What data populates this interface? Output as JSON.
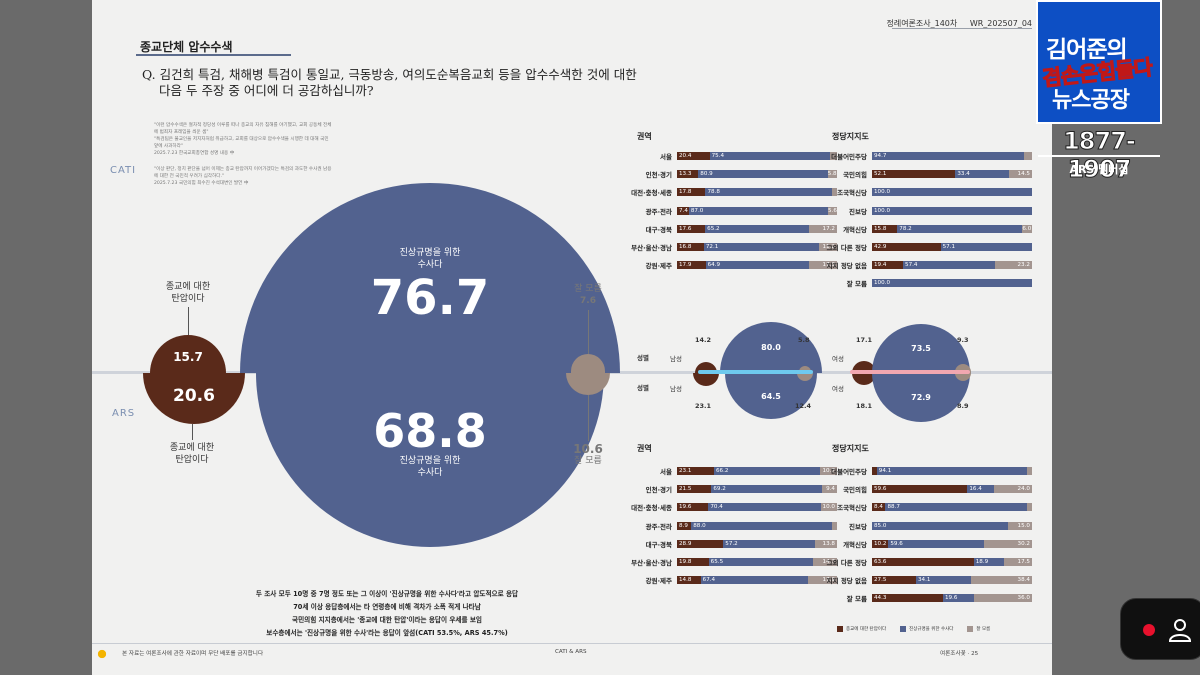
{
  "header": {
    "publication": "정례여론조사_140차",
    "issue": "WR_202507_04"
  },
  "section_title": "종교단체 압수수색",
  "question": {
    "line1": "Q. 김건희 특검, 채해병 특검이 통일교, 극동방송, 여의도순복음교회 등을 압수수색한 것에 대한",
    "line2": "다음 두 주장 중 어디에 더 공감하십니까?"
  },
  "quotes": [
    "\"이런 압수수색은 절차적 정당성 이루를 떠나 종교의 자유 침해를 야기했고, 교회 공동체 전체에 범죄자 프레임을 씌운 셈\"",
    "\"특검팀은 불교인을 저지자처럼 취급하고, 교회를 대상으로 압수수색을 시행한 데 대해 국민 앞에 사과하라\"",
    "2025.7.23 한국교회총연합 성명 내용 中",
    "\"이상 판단, 정치 판단을 넘어 이제는 종교 탄압까지 이어가겠다는 특검의 과도한 수사권 남용에 대한 전 국민적 우려가 심각하다.\"",
    "2025.7.23 국민의힘 최수진 수석대변인 발언 中"
  ],
  "labels": {
    "cati": "CATI",
    "ars": "ARS",
    "gender": "성별",
    "male": "남성",
    "female": "여성"
  },
  "main": {
    "investigation_label_line1": "진상규명을 위한",
    "investigation_label_line2": "수사다",
    "oppression_label_line1": "종교에 대한",
    "oppression_label_line2": "탄압이다",
    "dont_know_label": "잘 모름",
    "cati": {
      "investigation": "76.7",
      "oppression": "15.7",
      "dont_know": "7.6"
    },
    "ars": {
      "investigation": "68.8",
      "oppression": "20.6",
      "dont_know": "10.6"
    }
  },
  "gender": {
    "cati_male": {
      "oppression": "14.2",
      "investigation": "80.0",
      "dont_know": "5.8"
    },
    "ars_male": {
      "oppression": "23.1",
      "investigation": "64.5",
      "dont_know": "12.4"
    },
    "cati_female": {
      "oppression": "17.1",
      "investigation": "73.5",
      "dont_know": "9.3"
    },
    "ars_female": {
      "oppression": "18.1",
      "investigation": "72.9",
      "dont_know": "8.9"
    }
  },
  "panels": {
    "region_title": "권역",
    "party_title": "정당지지도",
    "cati_region": [
      {
        "label": "서울",
        "values": [
          20.4,
          75.4,
          4.2
        ],
        "texts": [
          "20.4",
          "75.4",
          ""
        ]
      },
      {
        "label": "인천·경기",
        "values": [
          13.3,
          80.9,
          5.8
        ],
        "texts": [
          "13.3",
          "80.9",
          "5.8"
        ]
      },
      {
        "label": "대전·충청·세종",
        "values": [
          17.8,
          78.8,
          3.4
        ],
        "texts": [
          "17.8",
          "78.8",
          ""
        ]
      },
      {
        "label": "광주·전라",
        "values": [
          7.4,
          87.0,
          5.6
        ],
        "texts": [
          "7.4",
          "87.0",
          "5.6"
        ]
      },
      {
        "label": "대구·경북",
        "values": [
          17.6,
          65.2,
          17.2
        ],
        "texts": [
          "17.6",
          "65.2",
          "17.2"
        ]
      },
      {
        "label": "부산·울산·경남",
        "values": [
          16.8,
          72.1,
          11.2
        ],
        "texts": [
          "16.8",
          "72.1",
          "11.2"
        ]
      },
      {
        "label": "강원·제주",
        "values": [
          17.9,
          64.9,
          17.3
        ],
        "texts": [
          "17.9",
          "64.9",
          "17.3"
        ]
      }
    ],
    "cati_party": [
      {
        "label": "더불어민주당",
        "values": [
          0,
          94.7,
          5.3
        ],
        "texts": [
          "",
          "94.7",
          ""
        ]
      },
      {
        "label": "국민의힘",
        "values": [
          52.1,
          33.4,
          14.5
        ],
        "texts": [
          "52.1",
          "33.4",
          "14.5"
        ]
      },
      {
        "label": "조국혁신당",
        "values": [
          0,
          100.0,
          0
        ],
        "texts": [
          "",
          "100.0",
          ""
        ]
      },
      {
        "label": "진보당",
        "values": [
          0,
          100.0,
          0
        ],
        "texts": [
          "",
          "100.0",
          ""
        ]
      },
      {
        "label": "개혁신당",
        "values": [
          15.8,
          78.2,
          6.0
        ],
        "texts": [
          "15.8",
          "78.2",
          "6.0"
        ]
      },
      {
        "label": "그외 다른 정당",
        "values": [
          42.9,
          57.1,
          0
        ],
        "texts": [
          "42.9",
          "57.1",
          ""
        ]
      },
      {
        "label": "지지 정당 없음",
        "values": [
          19.4,
          57.4,
          23.2
        ],
        "texts": [
          "19.4",
          "57.4",
          "23.2"
        ]
      },
      {
        "label": "잘 모름",
        "values": [
          0,
          100.0,
          0
        ],
        "texts": [
          "",
          "100.0",
          ""
        ]
      }
    ],
    "ars_region": [
      {
        "label": "서울",
        "values": [
          23.1,
          66.2,
          10.7
        ],
        "texts": [
          "23.1",
          "66.2",
          "10.7"
        ]
      },
      {
        "label": "인천·경기",
        "values": [
          21.5,
          69.2,
          9.4
        ],
        "texts": [
          "21.5",
          "69.2",
          "9.4"
        ]
      },
      {
        "label": "대전·충청·세종",
        "values": [
          19.6,
          70.4,
          10.0
        ],
        "texts": [
          "19.6",
          "70.4",
          "10.0"
        ]
      },
      {
        "label": "광주·전라",
        "values": [
          8.9,
          88.0,
          3.1
        ],
        "texts": [
          "8.9",
          "88.0",
          ""
        ]
      },
      {
        "label": "대구·경북",
        "values": [
          28.9,
          57.2,
          13.8
        ],
        "texts": [
          "28.9",
          "57.2",
          "13.8"
        ]
      },
      {
        "label": "부산·울산·경남",
        "values": [
          19.8,
          65.5,
          14.7
        ],
        "texts": [
          "19.8",
          "65.5",
          "14.7"
        ]
      },
      {
        "label": "강원·제주",
        "values": [
          14.8,
          67.4,
          17.9
        ],
        "texts": [
          "14.8",
          "67.4",
          "17.9"
        ]
      }
    ],
    "ars_party": [
      {
        "label": "더불어민주당",
        "values": [
          3.0,
          94.1,
          2.9
        ],
        "texts": [
          "",
          "94.1",
          ""
        ]
      },
      {
        "label": "국민의힘",
        "values": [
          59.6,
          16.4,
          24.0
        ],
        "texts": [
          "59.6",
          "16.4",
          "24.0"
        ]
      },
      {
        "label": "조국혁신당",
        "values": [
          8.4,
          88.7,
          2.9
        ],
        "texts": [
          "8.4",
          "88.7",
          ""
        ]
      },
      {
        "label": "진보당",
        "values": [
          0,
          85.0,
          15.0
        ],
        "texts": [
          "",
          "85.0",
          "15.0"
        ]
      },
      {
        "label": "개혁신당",
        "values": [
          10.2,
          59.6,
          30.2
        ],
        "texts": [
          "10.2",
          "59.6",
          "30.2"
        ]
      },
      {
        "label": "그외 다른 정당",
        "values": [
          63.6,
          18.9,
          17.5
        ],
        "texts": [
          "63.6",
          "18.9",
          "17.5"
        ]
      },
      {
        "label": "지지 정당 없음",
        "values": [
          27.5,
          34.1,
          38.4
        ],
        "texts": [
          "27.5",
          "34.1",
          "38.4"
        ]
      },
      {
        "label": "잘 모름",
        "values": [
          44.3,
          19.6,
          36.0
        ],
        "texts": [
          "44.3",
          "19.6",
          "36.0"
        ]
      }
    ]
  },
  "legend": {
    "oppression": "종교에 대한 탄압이다",
    "investigation": "진상규명을 위한 수사다",
    "dont_know": "잘 모름"
  },
  "summary": [
    "두 조사 모두 10명 중 7명 정도 또는 그 이상이 '진상규명을 위한 수사다'라고 압도적으로 응답",
    "70세 이상 응답층에서는 타 연령층에 비해 격차가 소폭 적게 나타남",
    "국민의힘 지지층에서는 '종교에 대한 탄압'이라는 응답이 우세를 보임",
    "보수층에서는 '진상규명을 위한 수사'라는 응답이 앞섬(CATI 53.5%, ARS 45.7%)"
  ],
  "footer": {
    "left": "본 자료는 여론조사에 관한 자료이며 무단 배포를 금지합니다",
    "center": "CATI & ARS",
    "right": "여론조사꽃 · 25"
  },
  "overlay": {
    "logo_line1": "김어준의",
    "logo_line2": "겸손은힘들다",
    "logo_line3": "뉴스공장",
    "phone": "1877-1907",
    "phone_sub": "ARS 멤버십"
  },
  "colors": {
    "oppression": "#5a2a1a",
    "investigation": "#52628f",
    "dont_know": "#a39590",
    "logo_bg": "#0d4fc4",
    "record": "#e8112d"
  }
}
